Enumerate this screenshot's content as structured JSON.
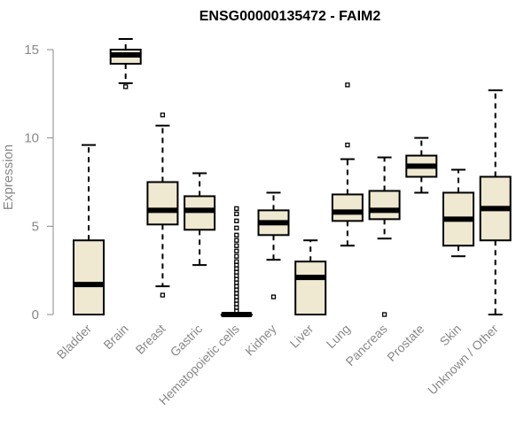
{
  "chart_data": {
    "type": "boxplot",
    "title": "ENSG00000135472 - FAIM2",
    "xlabel": "",
    "ylabel": "Expression",
    "ylim": [
      0,
      15.5
    ],
    "yticks": [
      0,
      5,
      10,
      15
    ],
    "categories": [
      "Bladder",
      "Brain",
      "Breast",
      "Gastric",
      "Hematopoietic cells",
      "Kidney",
      "Liver",
      "Lung",
      "Pancreas",
      "Prostate",
      "Skin",
      "Unknown / Other"
    ],
    "box_fill": "#efe9d2",
    "series": [
      {
        "name": "Bladder",
        "whislo": 0,
        "q1": 0,
        "median": 1.7,
        "q3": 4.2,
        "whishi": 9.6,
        "outliers": []
      },
      {
        "name": "Brain",
        "whislo": 13.1,
        "q1": 14.2,
        "median": 14.7,
        "q3": 15.0,
        "whishi": 15.6,
        "outliers": [
          12.9
        ]
      },
      {
        "name": "Breast",
        "whislo": 1.6,
        "q1": 5.1,
        "median": 5.9,
        "q3": 7.5,
        "whishi": 10.7,
        "outliers": [
          1.1,
          11.3
        ]
      },
      {
        "name": "Gastric",
        "whislo": 2.8,
        "q1": 4.8,
        "median": 5.9,
        "q3": 6.7,
        "whishi": 8.0,
        "outliers": []
      },
      {
        "name": "Hematopoietic cells",
        "whislo": 0,
        "q1": 0,
        "median": 0,
        "q3": 0,
        "whishi": 0,
        "outliers": [
          0.2,
          0.4,
          0.6,
          0.8,
          1.0,
          1.2,
          1.4,
          1.6,
          1.8,
          2.0,
          2.2,
          2.4,
          2.6,
          2.8,
          3.0,
          3.3,
          3.6,
          3.9,
          4.2,
          4.5,
          4.9,
          5.3,
          5.7,
          6.0
        ]
      },
      {
        "name": "Kidney",
        "whislo": 3.1,
        "q1": 4.5,
        "median": 5.2,
        "q3": 5.9,
        "whishi": 6.9,
        "outliers": [
          1.0
        ]
      },
      {
        "name": "Liver",
        "whislo": 0,
        "q1": 0,
        "median": 2.1,
        "q3": 3.0,
        "whishi": 4.2,
        "outliers": []
      },
      {
        "name": "Lung",
        "whislo": 3.9,
        "q1": 5.3,
        "median": 5.8,
        "q3": 6.8,
        "whishi": 8.8,
        "outliers": [
          9.6,
          13.0
        ]
      },
      {
        "name": "Pancreas",
        "whislo": 4.3,
        "q1": 5.4,
        "median": 5.9,
        "q3": 7.0,
        "whishi": 8.9,
        "outliers": [
          0.0
        ]
      },
      {
        "name": "Prostate",
        "whislo": 6.9,
        "q1": 7.8,
        "median": 8.4,
        "q3": 9.0,
        "whishi": 10.0,
        "outliers": []
      },
      {
        "name": "Skin",
        "whislo": 3.3,
        "q1": 3.9,
        "median": 5.4,
        "q3": 6.9,
        "whishi": 8.2,
        "outliers": []
      },
      {
        "name": "Unknown / Other",
        "whislo": 0,
        "q1": 4.2,
        "median": 6.0,
        "q3": 7.8,
        "whishi": 12.7,
        "outliers": []
      }
    ]
  }
}
